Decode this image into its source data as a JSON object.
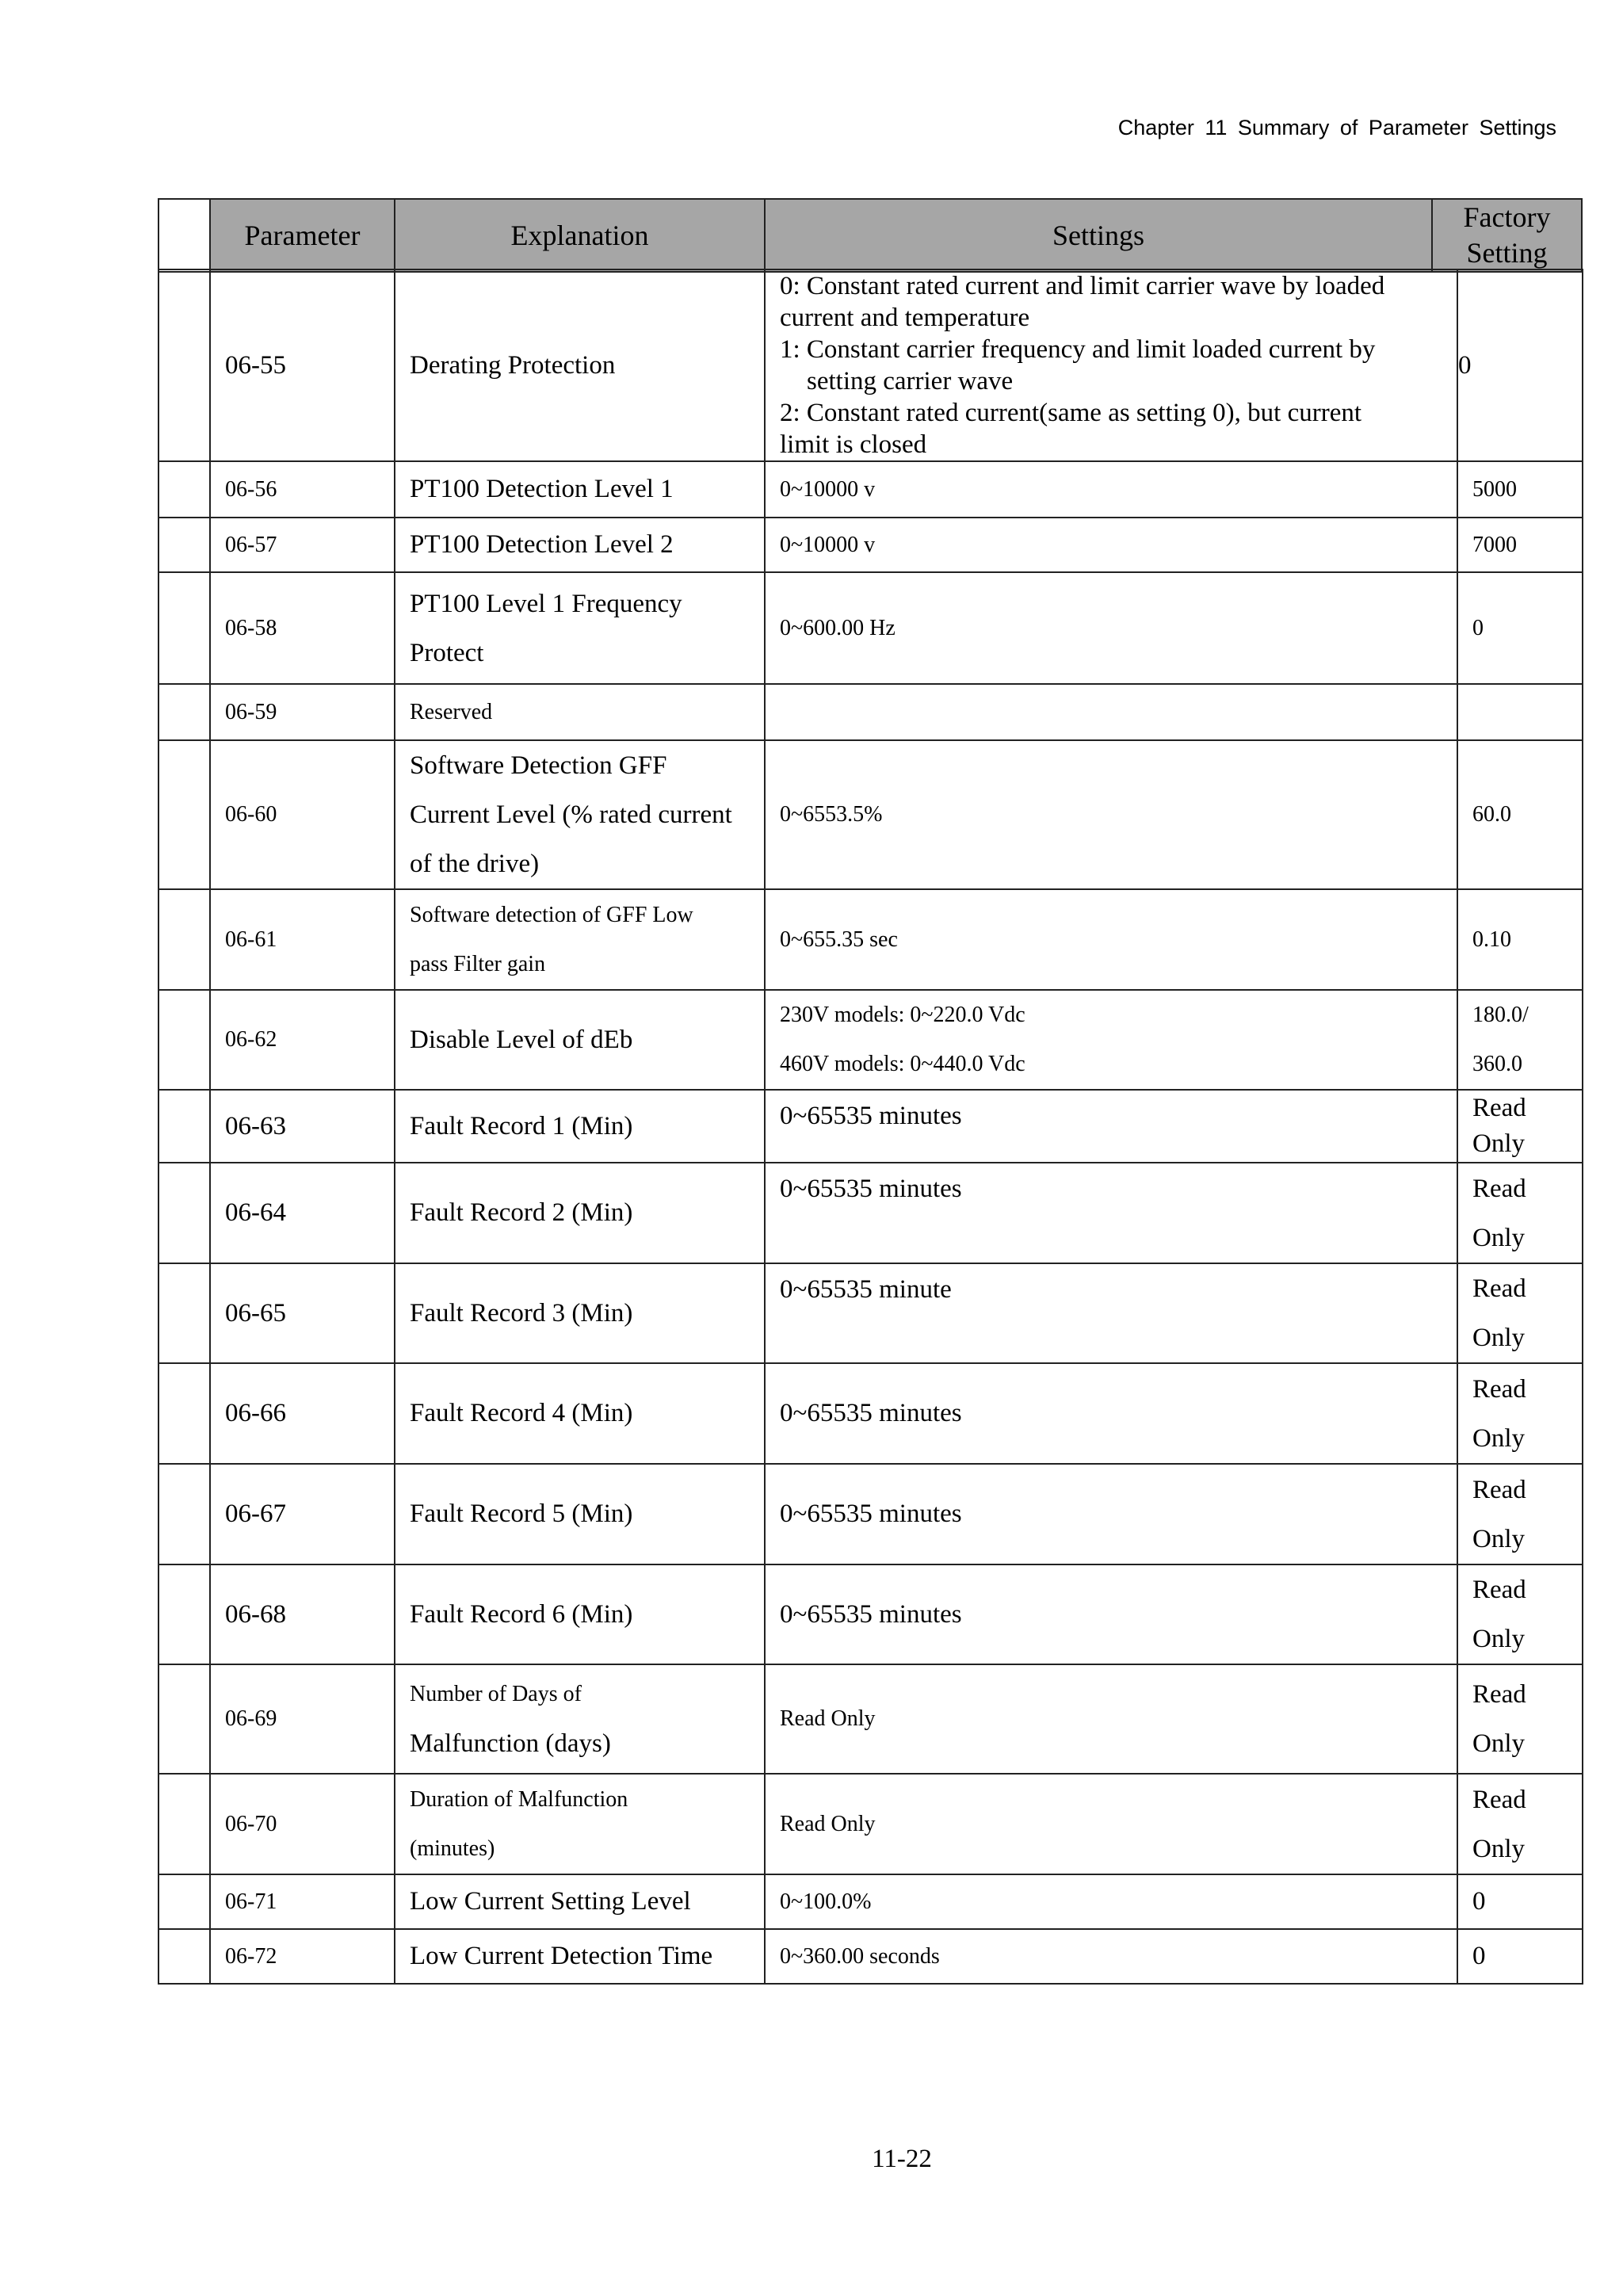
{
  "header": {
    "running_title": "Chapter 11 Summary of Parameter Settings"
  },
  "table": {
    "columns": [
      "Parameter",
      "Explanation",
      "Settings",
      "Factory Setting"
    ],
    "factory_header_lines": [
      "Factory",
      "Setting"
    ],
    "rows": [
      {
        "parameter": "06-55",
        "explanation": [
          "Derating Protection"
        ],
        "settings": [
          "0: Constant rated current and limit carrier wave by loaded",
          "current and temperature",
          "1: Constant carrier frequency and limit loaded current by",
          "setting carrier wave",
          "2: Constant rated current(same as setting 0), but current",
          "limit is closed"
        ],
        "factory": [
          "0"
        ]
      },
      {
        "parameter": "06-56",
        "explanation": [
          "PT100 Detection Level 1"
        ],
        "settings": [
          "0~10000 v"
        ],
        "factory": [
          "5000"
        ]
      },
      {
        "parameter": "06-57",
        "explanation": [
          "PT100 Detection Level 2"
        ],
        "settings": [
          "0~10000 v"
        ],
        "factory": [
          "7000"
        ]
      },
      {
        "parameter": "06-58",
        "explanation": [
          "PT100 Level 1 Frequency",
          "Protect"
        ],
        "settings": [
          "0~600.00 Hz"
        ],
        "factory": [
          "0"
        ]
      },
      {
        "parameter": "06-59",
        "explanation": [
          "Reserved"
        ],
        "settings": [],
        "factory": []
      },
      {
        "parameter": "06-60",
        "explanation": [
          "Software Detection GFF",
          "Current Level (% rated current",
          "of the drive)"
        ],
        "settings": [
          "0~6553.5%"
        ],
        "factory": [
          "60.0"
        ]
      },
      {
        "parameter": "06-61",
        "explanation": [
          "Software detection of GFF Low",
          "pass Filter gain"
        ],
        "settings": [
          "0~655.35 sec"
        ],
        "factory": [
          "0.10"
        ]
      },
      {
        "parameter": "06-62",
        "explanation": [
          "Disable Level of dEb"
        ],
        "settings": [
          "230V models: 0~220.0 Vdc",
          "460V models: 0~440.0 Vdc"
        ],
        "factory": [
          "180.0/",
          "360.0"
        ]
      },
      {
        "parameter": "06-63",
        "explanation": [
          "Fault Record 1 (Min)"
        ],
        "settings": [
          "0~65535 minutes"
        ],
        "factory": [
          "Read",
          "Only"
        ]
      },
      {
        "parameter": "06-64",
        "explanation": [
          "Fault Record 2 (Min)"
        ],
        "settings": [
          "0~65535 minutes"
        ],
        "factory": [
          "Read",
          "Only"
        ]
      },
      {
        "parameter": "06-65",
        "explanation": [
          "Fault Record 3 (Min)"
        ],
        "settings": [
          "0~65535 minute"
        ],
        "factory": [
          "Read",
          "Only"
        ]
      },
      {
        "parameter": "06-66",
        "explanation": [
          "Fault Record 4 (Min)"
        ],
        "settings": [
          "0~65535 minutes"
        ],
        "factory": [
          "Read",
          "Only"
        ]
      },
      {
        "parameter": "06-67",
        "explanation": [
          "Fault Record 5 (Min)"
        ],
        "settings": [
          "0~65535 minutes"
        ],
        "factory": [
          "Read",
          "Only"
        ]
      },
      {
        "parameter": "06-68",
        "explanation": [
          "Fault Record 6 (Min)"
        ],
        "settings": [
          "0~65535 minutes"
        ],
        "factory": [
          "Read",
          "Only"
        ]
      },
      {
        "parameter": "06-69",
        "explanation": [
          "Number of Days of",
          "Malfunction (days)"
        ],
        "settings": [
          "Read Only"
        ],
        "factory": [
          "Read",
          "Only"
        ]
      },
      {
        "parameter": "06-70",
        "explanation": [
          "Duration of Malfunction",
          "(minutes)"
        ],
        "settings": [
          "Read Only"
        ],
        "factory": [
          "Read",
          "Only"
        ]
      },
      {
        "parameter": "06-71",
        "explanation": [
          "Low Current Setting Level"
        ],
        "settings": [
          "0~100.0%"
        ],
        "factory": [
          "0"
        ]
      },
      {
        "parameter": "06-72",
        "explanation": [
          "Low Current Detection Time"
        ],
        "settings": [
          "0~360.00 seconds"
        ],
        "factory": [
          "0"
        ]
      }
    ]
  },
  "footer": {
    "page_number": "11-22"
  }
}
